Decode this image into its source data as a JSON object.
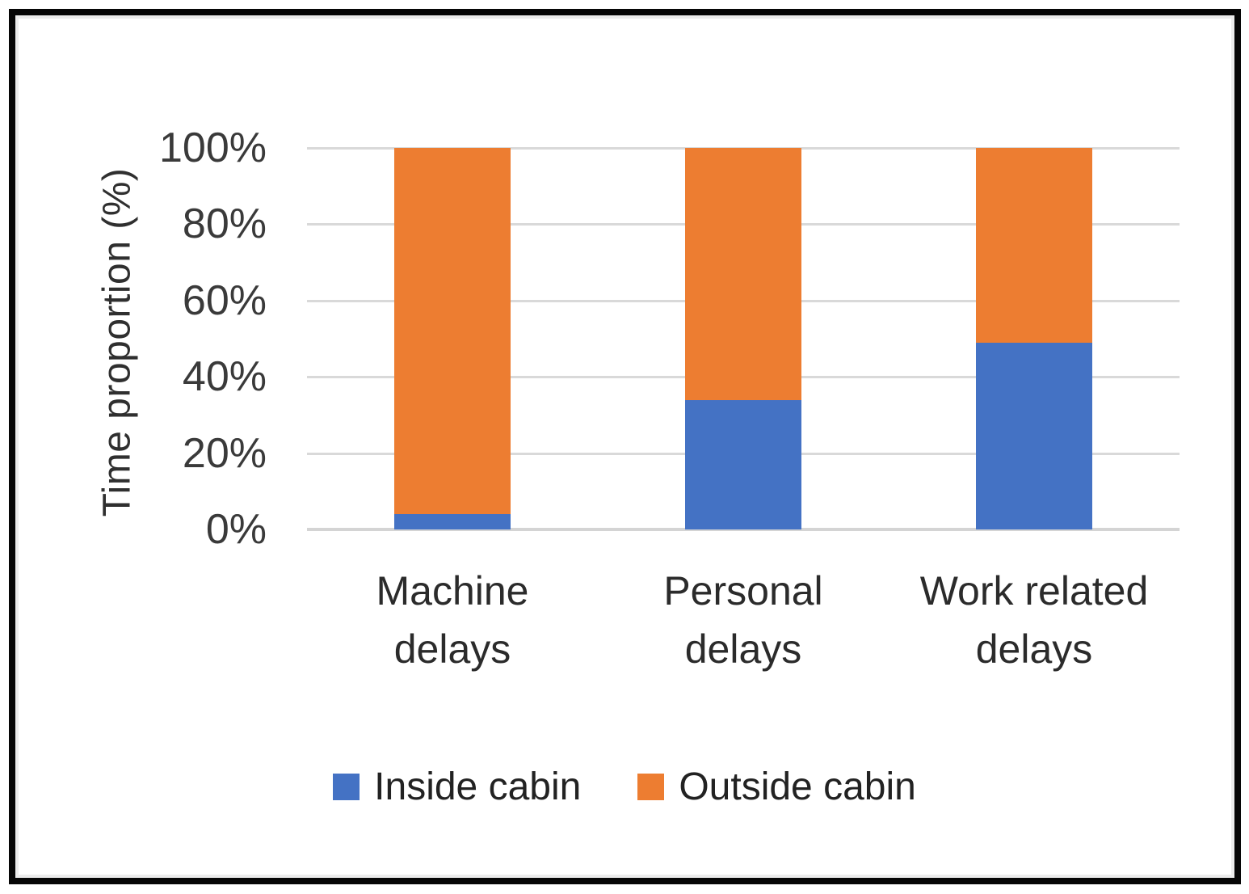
{
  "chart_data": {
    "type": "bar",
    "stacked": true,
    "units": "percent",
    "title": "",
    "xlabel": "",
    "ylabel": "Time proportion (%)",
    "ylim": [
      0,
      100
    ],
    "yticks": [
      "0%",
      "20%",
      "40%",
      "60%",
      "80%",
      "100%"
    ],
    "grid": true,
    "gridline_color": "#d9d9d9",
    "legend_position": "bottom",
    "categories": [
      "Machine delays",
      "Personal delays",
      "Work related delays"
    ],
    "series": [
      {
        "name": "Inside cabin",
        "color": "#4472C4",
        "values": [
          4,
          34,
          49
        ]
      },
      {
        "name": "Outside cabin",
        "color": "#ED7D31",
        "values": [
          96,
          66,
          51
        ]
      }
    ]
  }
}
